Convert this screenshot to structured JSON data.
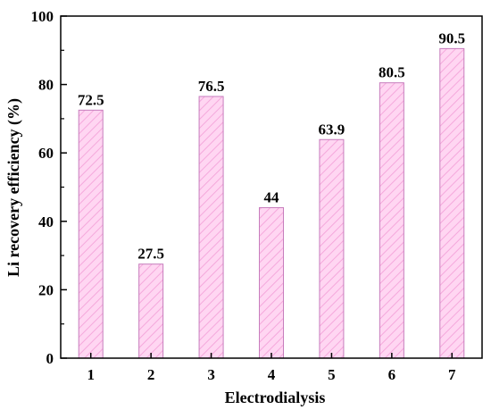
{
  "chart_data": {
    "type": "bar",
    "categories": [
      "1",
      "2",
      "3",
      "4",
      "5",
      "6",
      "7"
    ],
    "values": [
      72.5,
      27.5,
      76.5,
      44,
      63.9,
      80.5,
      90.5
    ],
    "data_labels": [
      "72.5",
      "27.5",
      "76.5",
      "44",
      "63.9",
      "80.5",
      "90.5"
    ],
    "title": "",
    "xlabel": "Electrodialysis",
    "ylabel": "Li recovery efficiency (%)",
    "ylim": [
      0,
      100
    ],
    "yticks": [
      0,
      20,
      40,
      60,
      80,
      100
    ],
    "grid": false,
    "legend": "none",
    "bar_fill": "#ffd6f2",
    "bar_hatch": "#f5a8dc",
    "bar_edge": "#c77dbd",
    "axis_color": "#000000"
  }
}
